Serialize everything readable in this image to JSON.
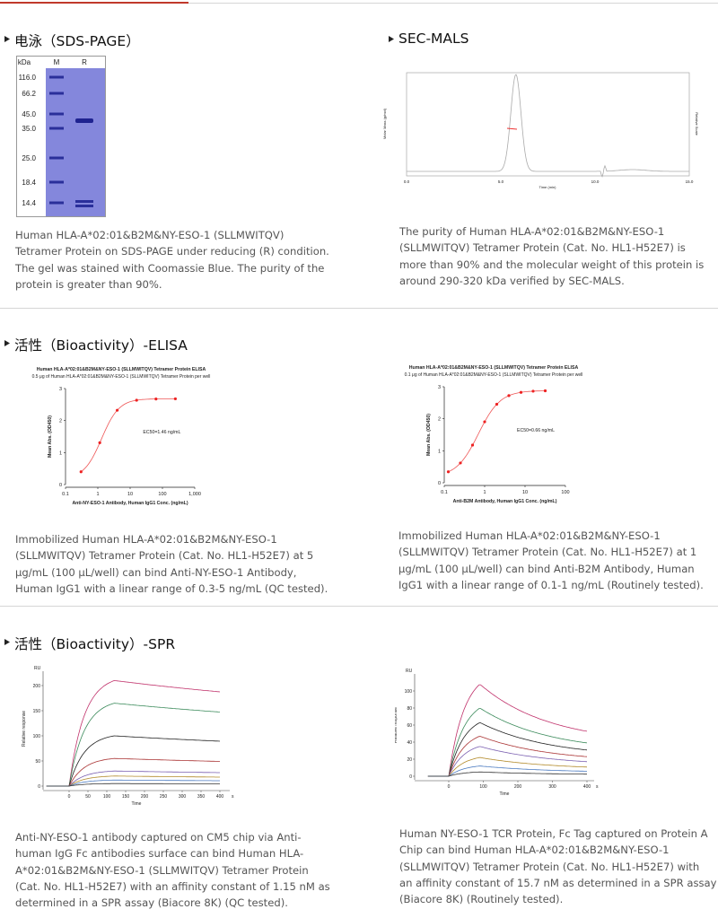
{
  "sections": [
    {
      "panels": [
        {
          "heading": "电泳（SDS-PAGE）",
          "figure": {
            "header": [
              "kDa",
              "M",
              "R"
            ],
            "markers": [
              "116.0",
              "66.2",
              "45.0",
              "35.0",
              "25.0",
              "18.4",
              "14.4"
            ]
          },
          "caption": [
            "Human HLA-A*02:01&B2M&NY-ESO-1 (SLLMWITQV)",
            "Tetramer Protein on SDS-PAGE under reducing (R) condition.",
            "The gel was stained with Coomassie Blue. The purity of the",
            "protein is greater than 90%."
          ]
        },
        {
          "heading": "SEC-MALS",
          "figure": {
            "y_label": "Molar Mass (g/mol)",
            "y2_label": "Relative Scale",
            "x_label": "Time (min)",
            "xticks": [
              "0.0",
              "5.0",
              "10.0",
              "15.0"
            ]
          },
          "caption": [
            "The purity of Human HLA-A*02:01&B2M&NY-ESO-1",
            "(SLLMWITQV) Tetramer Protein (Cat. No. HL1-H52E7) is",
            "more than 90% and the molecular weight of this protein is",
            "around 290-320 kDa verified by SEC-MALS."
          ]
        }
      ]
    },
    {
      "heading": "活性（Bioactivity）-ELISA",
      "panels": [
        {
          "figure": {
            "title": "Human HLA-A*02:01&B2M&NY-ESO-1 (SLLMWITQV) Tetramer Protein ELISA",
            "subtitle": "0.5 μg of Human HLA-A*02:01&B2M&NY-ESO-1 (SLLMWITQV) Tetramer Protein per well",
            "y_label": "Mean Abs. (OD450)",
            "x_label": "Anti-NY-ESO-1 Antibody, Human IgG1 Conc. (ng/mL)",
            "yticks": [
              "0",
              "1",
              "2",
              "3"
            ],
            "xticks": [
              "0.1",
              "1",
              "10",
              "100",
              "1,000"
            ],
            "annotation": "EC50=1.46 ng/mL"
          },
          "caption": [
            "Immobilized Human HLA-A*02:01&B2M&NY-ESO-1",
            "(SLLMWITQV) Tetramer Protein (Cat. No. HL1-H52E7) at 5",
            "μg/mL (100 μL/well) can bind Anti-NY-ESO-1 Antibody,",
            "Human IgG1 with a linear range of 0.3-5 ng/mL (QC tested)."
          ]
        },
        {
          "figure": {
            "title": "Human HLA-A*02:01&B2M&NY-ESO-1 (SLLMWITQV) Tetramer Protein ELISA",
            "subtitle": "0.1 μg of Human HLA-A*02:01&B2M&NY-ESO-1 (SLLMWITQV) Tetramer Protein per well",
            "y_label": "Mean Abs. (OD450)",
            "x_label": "Anti-B2M Antibody, Human IgG1 Conc. (ng/mL)",
            "yticks": [
              "0",
              "1",
              "2",
              "3"
            ],
            "xticks": [
              "0.1",
              "1",
              "10",
              "100"
            ],
            "annotation": "EC50=0.66 ng/mL"
          },
          "caption": [
            "Immobilized Human HLA-A*02:01&B2M&NY-ESO-1",
            "(SLLMWITQV) Tetramer Protein (Cat. No. HL1-H52E7) at 1",
            "μg/mL (100 μL/well) can bind Anti-B2M Antibody, Human",
            "IgG1 with a linear range of 0.1-1 ng/mL (Routinely tested)."
          ]
        }
      ]
    },
    {
      "heading": "活性（Bioactivity）-SPR",
      "panels": [
        {
          "figure": {
            "unit": "RU",
            "y_label": "Relative response",
            "x_label": "Time",
            "x_unit": "s",
            "yticks": [
              "0",
              "50",
              "100",
              "150",
              "200"
            ],
            "xticks": [
              "0",
              "50",
              "100",
              "150",
              "200",
              "250",
              "300",
              "350",
              "400"
            ]
          },
          "caption": [
            "Anti-NY-ESO-1 antibody captured on CM5 chip via Anti-",
            "human IgG Fc antibodies surface can bind Human HLA-",
            "A*02:01&B2M&NY-ESO-1 (SLLMWITQV) Tetramer Protein",
            "(Cat. No. HL1-H52E7) with an affinity constant of 1.15 nM as",
            "determined in a SPR assay (Biacore 8K) (QC tested)."
          ]
        },
        {
          "figure": {
            "unit": "RU",
            "y_label": "Relative response",
            "x_label": "Time",
            "x_unit": "s",
            "yticks": [
              "0",
              "20",
              "40",
              "60",
              "80",
              "100"
            ],
            "xticks": [
              "0",
              "100",
              "200",
              "300",
              "400"
            ]
          },
          "caption": [
            "Human NY-ESO-1 TCR Protein, Fc Tag captured on Protein A",
            "Chip can bind Human HLA-A*02:01&B2M&NY-ESO-1",
            "(SLLMWITQV) Tetramer Protein (Cat. No. HL1-H52E7) with",
            "an affinity constant of 15.7 nM as determined in a SPR assay",
            "(Biacore 8K) (Routinely tested)."
          ]
        }
      ]
    }
  ]
}
